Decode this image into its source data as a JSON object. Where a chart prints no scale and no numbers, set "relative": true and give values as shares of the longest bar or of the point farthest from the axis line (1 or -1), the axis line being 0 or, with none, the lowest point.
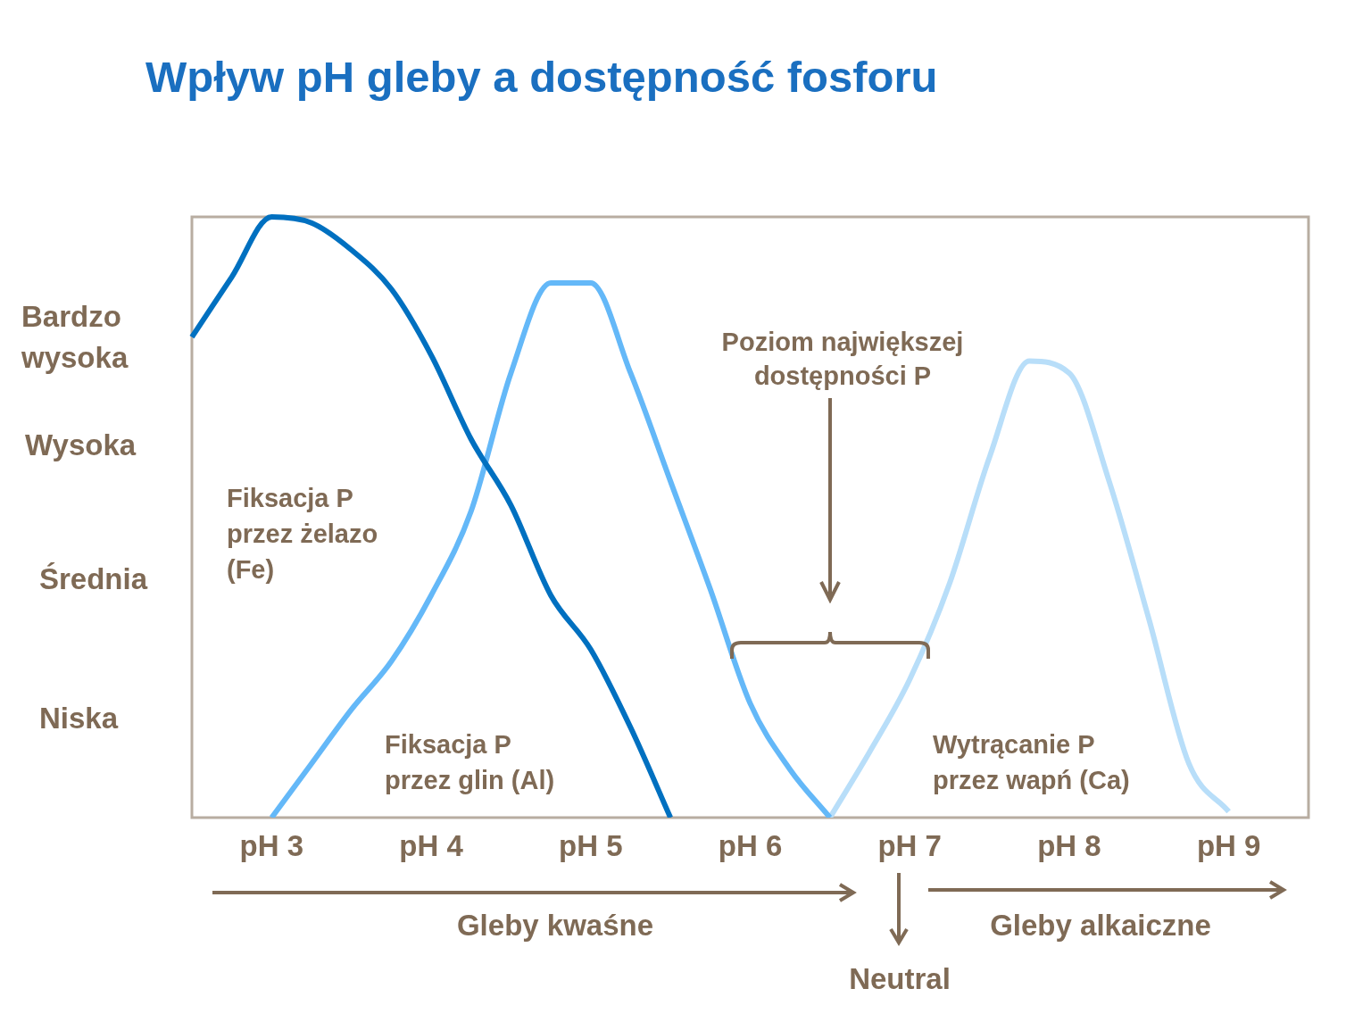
{
  "chart_data": {
    "type": "line",
    "title": "Wpływ pH gleby a dostępność fosforu",
    "relative": true,
    "categories": [
      null,
      null,
      "pH 3",
      null,
      null,
      null,
      "pH 4",
      null,
      null,
      null,
      "pH 5",
      null,
      null,
      null,
      "pH 6",
      null,
      null,
      null,
      "pH 7",
      null,
      null,
      null,
      "pH 8",
      null,
      null,
      null,
      "pH 9",
      null,
      null
    ],
    "grid": false,
    "legend": false,
    "marker": "none",
    "line_style": "solid",
    "series": [
      {
        "color": "#0070c0",
        "values": [
          0.8,
          0.9,
          1,
          0.99,
          0.945,
          0.88,
          0.77,
          0.63,
          0.52,
          0.37,
          0.28,
          0.15,
          0,
          null,
          null,
          null,
          null,
          null,
          null,
          null,
          null,
          null,
          null,
          null,
          null,
          null,
          null,
          null,
          null
        ]
      },
      {
        "color": "#64b8f8",
        "values": [
          null,
          null,
          0,
          0.09,
          0.18,
          0.26,
          0.37,
          0.51,
          0.74,
          0.89,
          0.89,
          0.74,
          0.56,
          0.38,
          0.19,
          0.08,
          0,
          null,
          null,
          null,
          null,
          null,
          null,
          null,
          null,
          null,
          null,
          null,
          null
        ]
      },
      {
        "color": "#b8def9",
        "values": [
          null,
          null,
          null,
          null,
          null,
          null,
          null,
          null,
          null,
          null,
          null,
          null,
          null,
          null,
          null,
          null,
          0,
          0.11,
          0.23,
          0.39,
          0.6,
          0.76,
          0.74,
          0.56,
          0.33,
          0.09,
          0.01,
          null,
          null
        ]
      }
    ],
    "annotations": [
      "Bardzo wysoka",
      "Wysoka",
      "Średnia",
      "Niska",
      "Fiksacja P przez żelazo (Fe)",
      "Fiksacja P przez glin (Al)",
      "Wytrącanie P przez wapń (Ca)",
      "Poziom największej dostępności P",
      "Gleby kwaśne",
      "Gleby alkaiczne",
      "Neutral"
    ]
  }
}
